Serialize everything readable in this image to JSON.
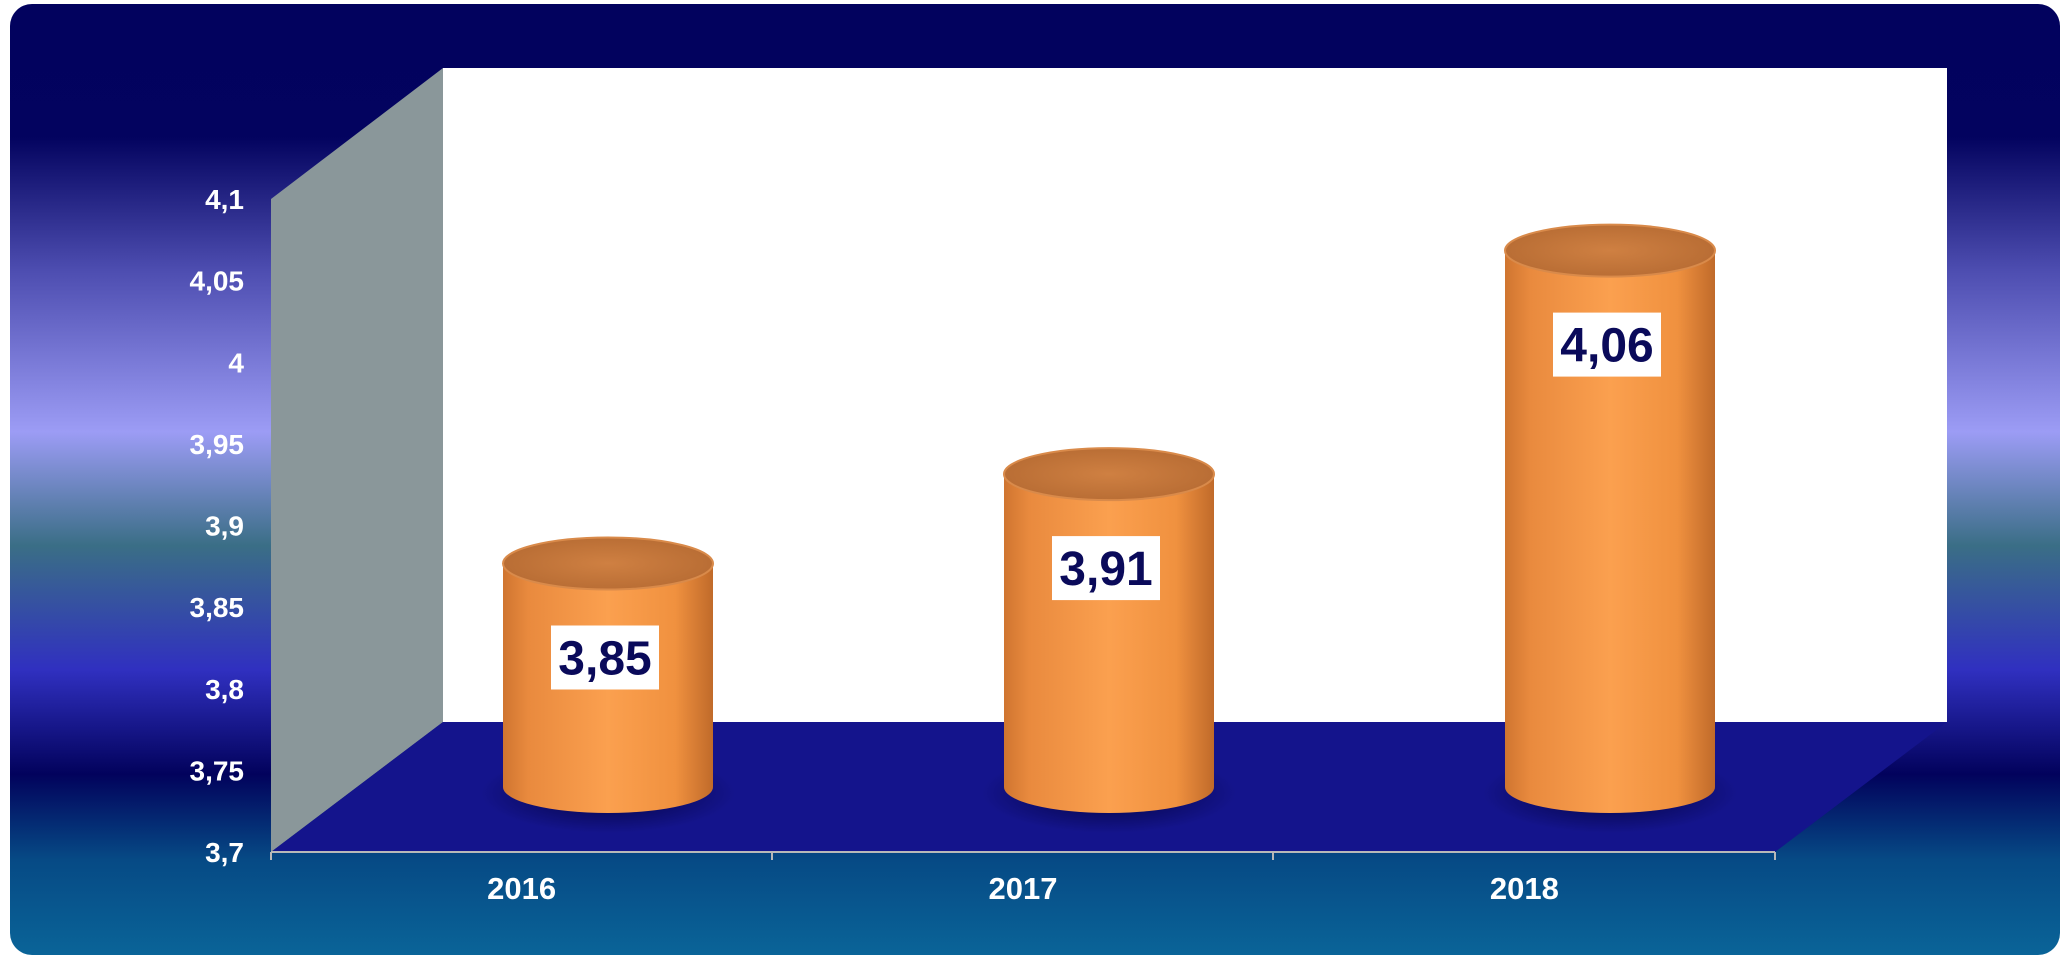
{
  "chart_data": {
    "type": "bar",
    "bar_shape": "3d-cylinder",
    "categories": [
      "2016",
      "2017",
      "2018"
    ],
    "values": [
      3.85,
      3.91,
      4.06
    ],
    "value_labels": [
      "3,85",
      "3,91",
      "4,06"
    ],
    "ylim": [
      3.7,
      4.1
    ],
    "y_ticks": [
      3.7,
      3.75,
      3.8,
      3.85,
      3.9,
      3.95,
      4.0,
      4.05,
      4.1
    ],
    "y_tick_labels": [
      "3,7",
      "3,75",
      "3,8",
      "3,85",
      "3,9",
      "3,95",
      "4",
      "4,05",
      "4,1"
    ],
    "title": "",
    "xlabel": "",
    "ylabel": "",
    "grid": false,
    "legend": "none",
    "colors": {
      "bar": "#f99a48",
      "bar_top": "#c5763a",
      "back_wall": "#ffffff",
      "side_wall": "#8a979a",
      "floor": "#12128a",
      "tick_text": "#ffffff",
      "value_text": "#0a0a5a",
      "value_box": "#ffffff"
    }
  }
}
